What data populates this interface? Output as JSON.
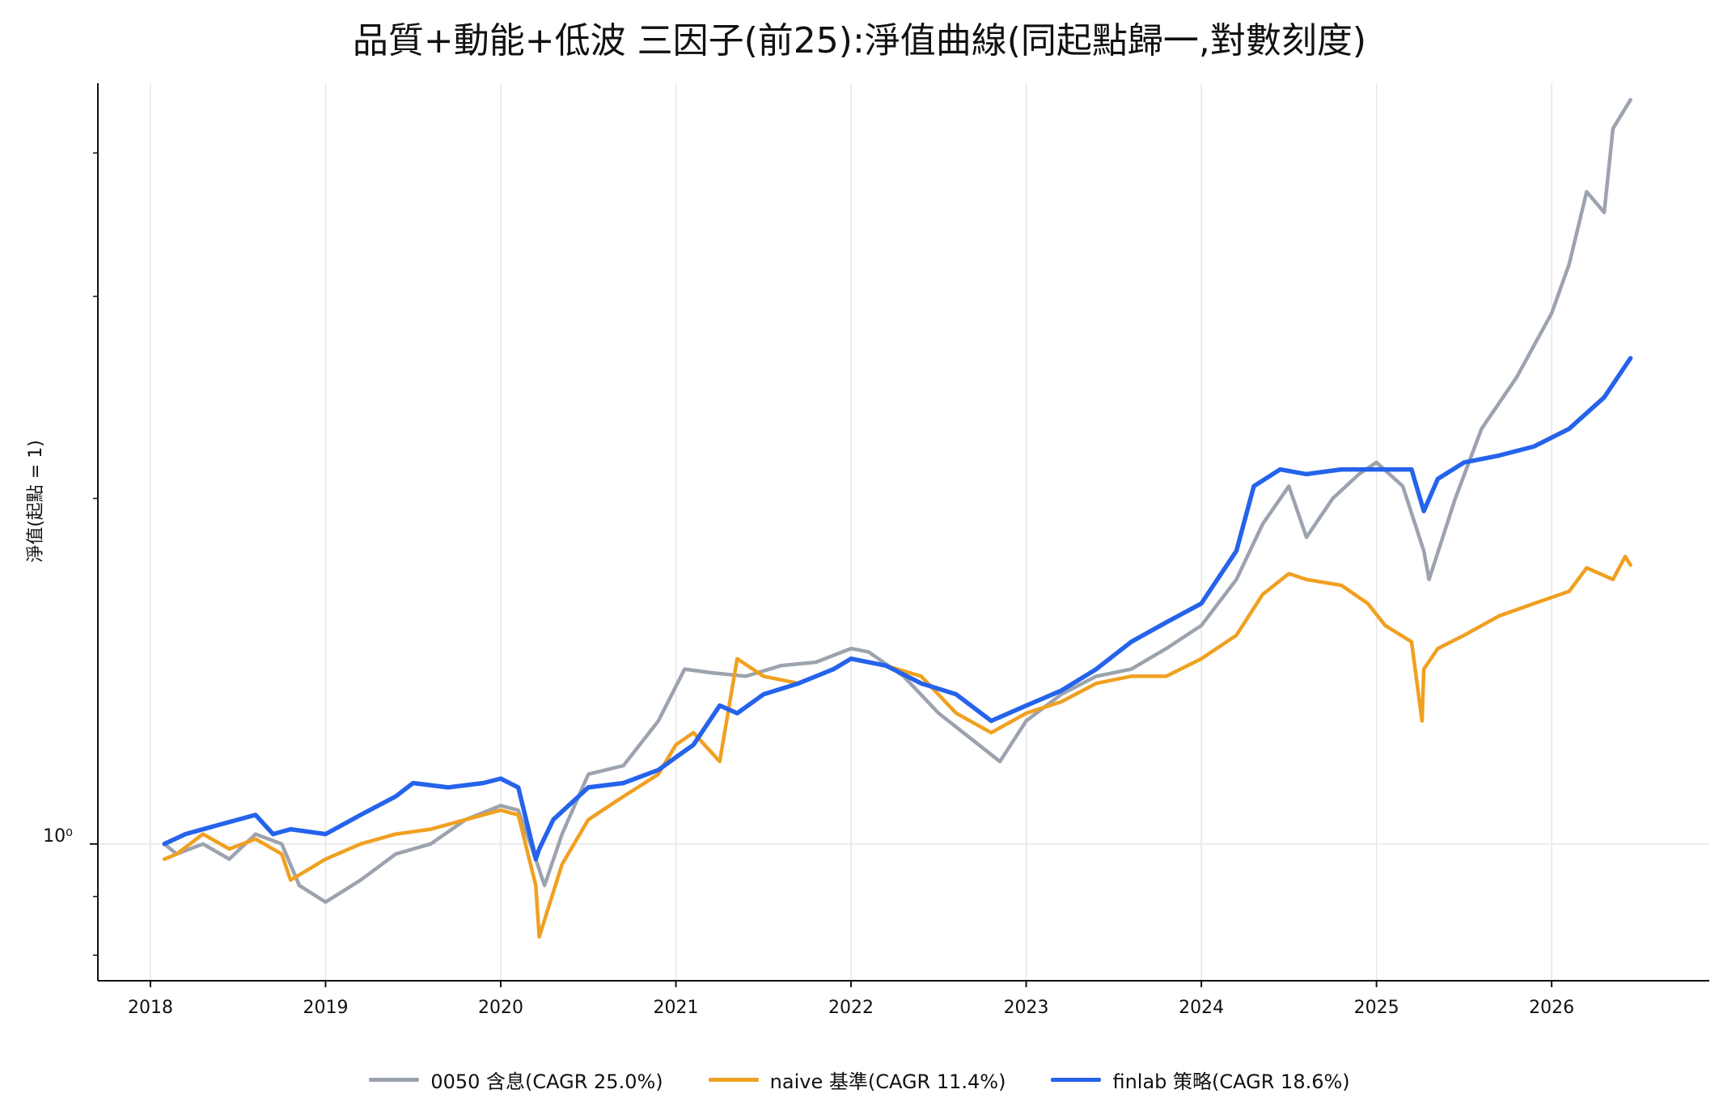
{
  "chart_data": {
    "type": "line",
    "title": "品質+動能+低波 三因子(前25):淨值曲線(同起點歸一,對數刻度)",
    "xlabel": "",
    "ylabel": "淨值(起點 = 1)",
    "yscale": "log",
    "ylim": [
      0.76,
      4.6
    ],
    "xlim": [
      2017.7,
      2026.9
    ],
    "ytick_label": "10⁰",
    "x_ticks": [
      "2018",
      "2019",
      "2020",
      "2021",
      "2022",
      "2023",
      "2024",
      "2025",
      "2026"
    ],
    "grid": true,
    "legend_position": "bottom-center",
    "series": [
      {
        "name": "0050 含息(CAGR 25.0%)",
        "color": "#9ca3af",
        "x": [
          2018.08,
          2018.15,
          2018.3,
          2018.45,
          2018.6,
          2018.75,
          2018.85,
          2019.0,
          2019.2,
          2019.4,
          2019.6,
          2019.8,
          2020.0,
          2020.1,
          2020.2,
          2020.25,
          2020.35,
          2020.5,
          2020.7,
          2020.9,
          2021.05,
          2021.2,
          2021.4,
          2021.6,
          2021.8,
          2022.0,
          2022.1,
          2022.3,
          2022.5,
          2022.7,
          2022.85,
          2023.0,
          2023.2,
          2023.4,
          2023.6,
          2023.8,
          2024.0,
          2024.2,
          2024.35,
          2024.5,
          2024.6,
          2024.75,
          2024.9,
          2025.0,
          2025.15,
          2025.27,
          2025.3,
          2025.45,
          2025.6,
          2025.8,
          2026.0,
          2026.1,
          2026.2,
          2026.3,
          2026.35,
          2026.45
        ],
        "values": [
          1.0,
          0.98,
          1.0,
          0.97,
          1.02,
          1.0,
          0.92,
          0.89,
          0.93,
          0.98,
          1.0,
          1.05,
          1.08,
          1.07,
          0.97,
          0.92,
          1.02,
          1.15,
          1.17,
          1.28,
          1.42,
          1.41,
          1.4,
          1.43,
          1.44,
          1.48,
          1.47,
          1.4,
          1.3,
          1.23,
          1.18,
          1.28,
          1.35,
          1.4,
          1.42,
          1.48,
          1.55,
          1.7,
          1.9,
          2.05,
          1.85,
          2.0,
          2.1,
          2.15,
          2.05,
          1.8,
          1.7,
          2.0,
          2.3,
          2.55,
          2.9,
          3.2,
          3.7,
          3.55,
          4.2,
          4.45
        ]
      },
      {
        "name": "naive 基準(CAGR 11.4%)",
        "color": "#f0a020",
        "x": [
          2018.08,
          2018.15,
          2018.3,
          2018.45,
          2018.6,
          2018.75,
          2018.8,
          2019.0,
          2019.2,
          2019.4,
          2019.6,
          2019.8,
          2020.0,
          2020.1,
          2020.2,
          2020.22,
          2020.35,
          2020.5,
          2020.7,
          2020.9,
          2021.0,
          2021.1,
          2021.25,
          2021.35,
          2021.5,
          2021.7,
          2021.9,
          2022.0,
          2022.2,
          2022.4,
          2022.6,
          2022.8,
          2023.0,
          2023.2,
          2023.4,
          2023.6,
          2023.8,
          2024.0,
          2024.2,
          2024.35,
          2024.5,
          2024.6,
          2024.8,
          2024.95,
          2025.05,
          2025.2,
          2025.26,
          2025.27,
          2025.35,
          2025.5,
          2025.7,
          2025.9,
          2026.1,
          2026.2,
          2026.35,
          2026.42,
          2026.45
        ],
        "values": [
          0.97,
          0.98,
          1.02,
          0.99,
          1.01,
          0.98,
          0.93,
          0.97,
          1.0,
          1.02,
          1.03,
          1.05,
          1.07,
          1.06,
          0.92,
          0.83,
          0.96,
          1.05,
          1.1,
          1.15,
          1.22,
          1.25,
          1.18,
          1.45,
          1.4,
          1.38,
          1.42,
          1.45,
          1.43,
          1.4,
          1.3,
          1.25,
          1.3,
          1.33,
          1.38,
          1.4,
          1.4,
          1.45,
          1.52,
          1.65,
          1.72,
          1.7,
          1.68,
          1.62,
          1.55,
          1.5,
          1.28,
          1.42,
          1.48,
          1.52,
          1.58,
          1.62,
          1.66,
          1.74,
          1.7,
          1.78,
          1.75
        ]
      },
      {
        "name": "finlab 策略(CAGR 18.6%)",
        "color": "#2563eb",
        "x": [
          2018.08,
          2018.2,
          2018.4,
          2018.6,
          2018.7,
          2018.8,
          2019.0,
          2019.2,
          2019.4,
          2019.5,
          2019.7,
          2019.9,
          2020.0,
          2020.1,
          2020.2,
          2020.22,
          2020.3,
          2020.5,
          2020.7,
          2020.9,
          2021.0,
          2021.1,
          2021.25,
          2021.35,
          2021.5,
          2021.7,
          2021.9,
          2022.0,
          2022.2,
          2022.4,
          2022.6,
          2022.8,
          2023.0,
          2023.2,
          2023.4,
          2023.6,
          2023.8,
          2024.0,
          2024.2,
          2024.3,
          2024.45,
          2024.6,
          2024.8,
          2025.0,
          2025.2,
          2025.27,
          2025.35,
          2025.5,
          2025.7,
          2025.9,
          2026.1,
          2026.3,
          2026.45
        ],
        "values": [
          1.0,
          1.02,
          1.04,
          1.06,
          1.02,
          1.03,
          1.02,
          1.06,
          1.1,
          1.13,
          1.12,
          1.13,
          1.14,
          1.12,
          0.97,
          0.99,
          1.05,
          1.12,
          1.13,
          1.16,
          1.19,
          1.22,
          1.32,
          1.3,
          1.35,
          1.38,
          1.42,
          1.45,
          1.43,
          1.38,
          1.35,
          1.28,
          1.32,
          1.36,
          1.42,
          1.5,
          1.56,
          1.62,
          1.8,
          2.05,
          2.12,
          2.1,
          2.12,
          2.12,
          2.12,
          1.95,
          2.08,
          2.15,
          2.18,
          2.22,
          2.3,
          2.45,
          2.65
        ]
      }
    ]
  }
}
